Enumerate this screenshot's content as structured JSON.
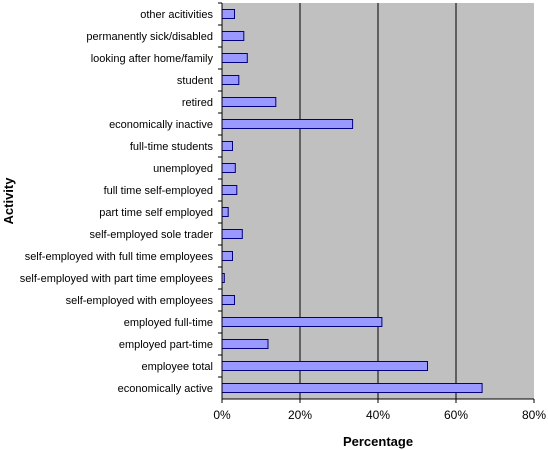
{
  "chart_data": {
    "type": "bar",
    "orientation": "horizontal",
    "ylabel": "Activity",
    "xlabel": "Percentage",
    "xlim": [
      0,
      80
    ],
    "x_ticks": [
      "0%",
      "20%",
      "40%",
      "60%",
      "80%"
    ],
    "grid": "vertical gridlines",
    "legend": "none",
    "categories": [
      "other acitivities",
      "permanently sick/disabled",
      "looking after home/family",
      "student",
      "retired",
      "economically inactive",
      "full-time students",
      "unemployed",
      "full time self-employed",
      "part time self employed",
      "self-employed sole trader",
      "self-employed with full time employees",
      "self-employed with part time employees",
      "self-employed with employees",
      "employed full-time",
      "employed part-time",
      "employee total",
      "economically active"
    ],
    "values": [
      3.2,
      5.6,
      6.5,
      4.3,
      13.8,
      33.5,
      2.7,
      3.4,
      3.8,
      1.6,
      5.2,
      2.7,
      0.6,
      3.2,
      41.0,
      11.8,
      52.7,
      66.7
    ],
    "colors": {
      "plot_background": "#c0c0c0",
      "bar_fill": "#9999ff",
      "bar_stroke": "#000080",
      "gridline": "#000000"
    }
  }
}
